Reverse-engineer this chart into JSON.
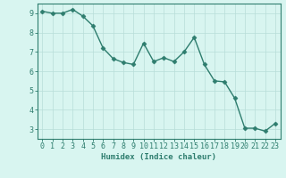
{
  "x": [
    0,
    1,
    2,
    3,
    4,
    5,
    6,
    7,
    8,
    9,
    10,
    11,
    12,
    13,
    14,
    15,
    16,
    17,
    18,
    19,
    20,
    21,
    22,
    23
  ],
  "y": [
    9.1,
    9.0,
    9.0,
    9.2,
    8.85,
    8.35,
    7.2,
    6.65,
    6.45,
    6.35,
    7.45,
    6.5,
    6.7,
    6.5,
    7.0,
    7.75,
    6.35,
    5.5,
    5.45,
    4.6,
    3.05,
    3.05,
    2.9,
    3.3
  ],
  "line_color": "#2e7d6e",
  "marker": "D",
  "markersize": 2.5,
  "linewidth": 1.0,
  "bg_color": "#d8f5f0",
  "grid_color": "#b8ddd8",
  "axis_color": "#2e7d6e",
  "xlabel": "Humidex (Indice chaleur)",
  "xlabel_fontsize": 6.5,
  "tick_fontsize": 6,
  "ylim": [
    2.5,
    9.5
  ],
  "xlim": [
    -0.5,
    23.5
  ],
  "yticks": [
    3,
    4,
    5,
    6,
    7,
    8,
    9
  ],
  "xticks": [
    0,
    1,
    2,
    3,
    4,
    5,
    6,
    7,
    8,
    9,
    10,
    11,
    12,
    13,
    14,
    15,
    16,
    17,
    18,
    19,
    20,
    21,
    22,
    23
  ]
}
